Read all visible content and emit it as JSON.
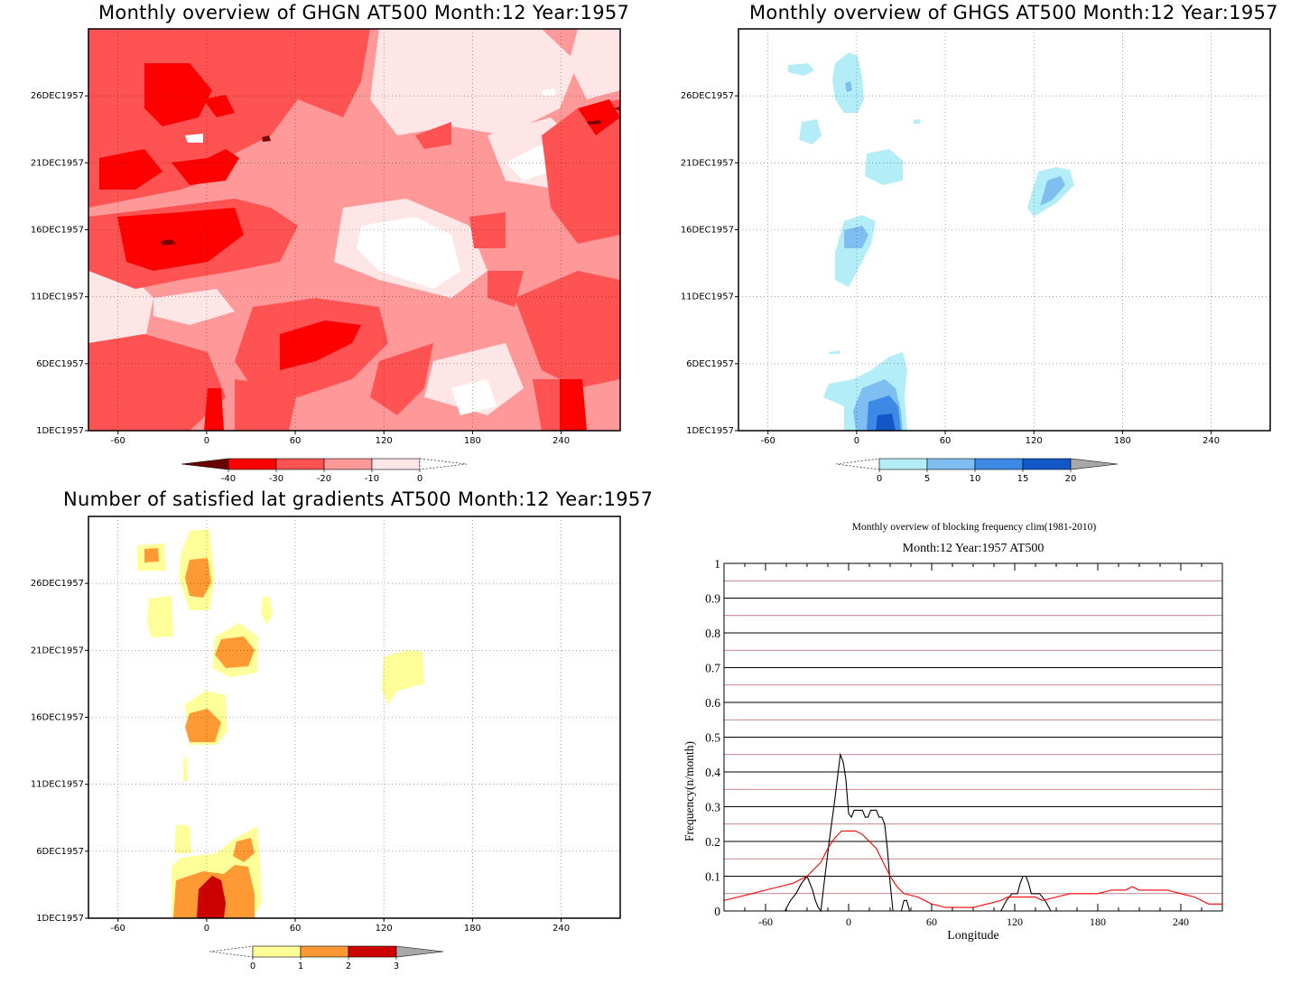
{
  "panels": {
    "ghgn": {
      "title": "Monthly overview of GHGN AT500 Month:12 Year:1957",
      "x_ticks": [
        "-60",
        "0",
        "60",
        "120",
        "180",
        "240"
      ],
      "y_ticks": [
        "1DEC1957",
        "6DEC1957",
        "11DEC1957",
        "16DEC1957",
        "21DEC1957",
        "26DEC1957"
      ],
      "colorbar": {
        "labels": [
          "-40",
          "-30",
          "-20",
          "-10",
          "0"
        ],
        "colors": [
          "#6b0000",
          "#ff0000",
          "#ff5252",
          "#ff9999",
          "#ffe6e6"
        ]
      }
    },
    "ghgs": {
      "title": "Monthly overview of GHGS AT500 Month:12 Year:1957",
      "x_ticks": [
        "-60",
        "0",
        "60",
        "120",
        "180",
        "240"
      ],
      "y_ticks": [
        "1DEC1957",
        "6DEC1957",
        "11DEC1957",
        "16DEC1957",
        "21DEC1957",
        "26DEC1957"
      ],
      "colorbar": {
        "labels": [
          "0",
          "5",
          "10",
          "15",
          "20"
        ],
        "colors": [
          "#b3eef8",
          "#7fbef0",
          "#3d8ae6",
          "#1256c8",
          "#a8a8a8"
        ]
      }
    },
    "lat": {
      "title": "Number of satisfied lat gradients AT500 Month:12 Year:1957",
      "x_ticks": [
        "-60",
        "0",
        "60",
        "120",
        "180",
        "240"
      ],
      "y_ticks": [
        "1DEC1957",
        "6DEC1957",
        "11DEC1957",
        "16DEC1957",
        "21DEC1957",
        "26DEC1957"
      ],
      "colorbar": {
        "labels": [
          "0",
          "1",
          "2",
          "3"
        ],
        "colors": [
          "#ffff99",
          "#ff9933",
          "#cc0000",
          "#a8a8a8"
        ]
      }
    },
    "freq": {
      "title": "Monthly overview of blocking frequency clim(1981-2010)",
      "subtitle": "Month:12 Year:1957  AT500"
    }
  },
  "chart_data": [
    {
      "type": "heatmap",
      "title": "Monthly overview of GHGN AT500 Month:12 Year:1957",
      "xlim": [
        -80,
        280
      ],
      "ylim_days": [
        1,
        31
      ],
      "y_tick_labels": [
        "1DEC1957",
        "6DEC1957",
        "11DEC1957",
        "16DEC1957",
        "21DEC1957",
        "26DEC1957"
      ],
      "levels": [
        -40,
        -30,
        -20,
        -10,
        0
      ]
    },
    {
      "type": "heatmap",
      "title": "Monthly overview of GHGS AT500 Month:12 Year:1957",
      "xlim": [
        -80,
        280
      ],
      "ylim_days": [
        1,
        31
      ],
      "levels": [
        0,
        5,
        10,
        15,
        20
      ]
    },
    {
      "type": "heatmap",
      "title": "Number of satisfied lat gradients AT500 Month:12 Year:1957",
      "xlim": [
        -80,
        280
      ],
      "ylim_days": [
        1,
        31
      ],
      "levels": [
        0,
        1,
        2,
        3
      ]
    },
    {
      "type": "line",
      "title": "Monthly overview of blocking frequency clim(1981-2010)",
      "subtitle": "Month:12 Year:1957  AT500",
      "xlabel": "Longitude",
      "ylabel": "Frequency(n/month)",
      "xlim": [
        -90,
        270
      ],
      "ylim": [
        0,
        1
      ],
      "x_ticks": [
        -60,
        0,
        60,
        120,
        180,
        240
      ],
      "y_ticks": [
        0,
        0.1,
        0.2,
        0.3,
        0.4,
        0.5,
        0.6,
        0.7,
        0.8,
        0.9,
        1
      ],
      "grid": true,
      "series": [
        {
          "color": "#000000",
          "x": [
            -90,
            -46,
            -42,
            -38,
            -34,
            -30,
            -26,
            -24,
            -22,
            -20,
            -18,
            -14,
            -10,
            -6,
            -4,
            -2,
            0,
            2,
            4,
            6,
            8,
            10,
            12,
            14,
            16,
            18,
            20,
            22,
            24,
            26,
            28,
            30,
            32,
            34,
            36,
            38,
            40,
            42,
            44,
            46,
            48,
            50,
            110,
            114,
            118,
            122,
            124,
            126,
            128,
            130,
            132,
            134,
            138,
            142,
            146,
            270
          ],
          "y": [
            0,
            0,
            0.03,
            0.05,
            0.08,
            0.1,
            0.06,
            0.03,
            0.01,
            0,
            0.07,
            0.2,
            0.32,
            0.45,
            0.43,
            0.38,
            0.28,
            0.27,
            0.29,
            0.29,
            0.29,
            0.29,
            0.27,
            0.27,
            0.29,
            0.29,
            0.29,
            0.27,
            0.27,
            0.25,
            0.18,
            0.08,
            0,
            0,
            0,
            0,
            0.03,
            0.03,
            0,
            0,
            0,
            0,
            0,
            0.03,
            0.05,
            0.05,
            0.08,
            0.1,
            0.1,
            0.08,
            0.05,
            0.05,
            0.05,
            0.03,
            0,
            0
          ]
        },
        {
          "color": "#ff0000",
          "x": [
            -90,
            -80,
            -70,
            -60,
            -50,
            -40,
            -30,
            -20,
            -15,
            -10,
            -5,
            0,
            5,
            10,
            15,
            20,
            25,
            30,
            35,
            40,
            50,
            60,
            70,
            80,
            90,
            100,
            110,
            115,
            120,
            125,
            130,
            135,
            140,
            150,
            160,
            170,
            180,
            190,
            200,
            205,
            210,
            215,
            220,
            230,
            240,
            250,
            260,
            270
          ],
          "y": [
            0.03,
            0.04,
            0.05,
            0.06,
            0.07,
            0.08,
            0.1,
            0.14,
            0.18,
            0.21,
            0.23,
            0.23,
            0.23,
            0.22,
            0.2,
            0.18,
            0.14,
            0.1,
            0.07,
            0.05,
            0.04,
            0.02,
            0.01,
            0.01,
            0.01,
            0.02,
            0.03,
            0.04,
            0.04,
            0.04,
            0.04,
            0.04,
            0.03,
            0.04,
            0.05,
            0.05,
            0.05,
            0.06,
            0.06,
            0.07,
            0.06,
            0.06,
            0.06,
            0.06,
            0.05,
            0.04,
            0.02,
            0.02
          ]
        }
      ],
      "horizontal_reference_lines_color": "#b06060"
    }
  ]
}
